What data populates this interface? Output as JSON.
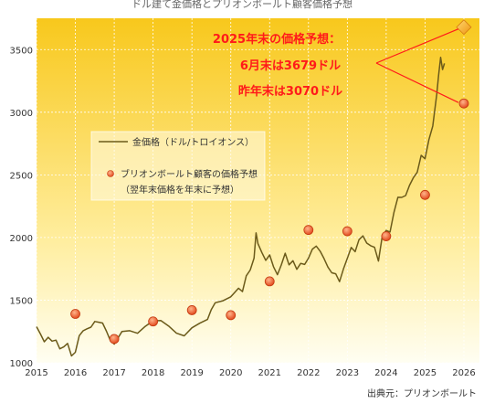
{
  "chart_data": {
    "type": "line",
    "title": "ドル建て金価格とプリオンボールト顧客価格予想",
    "source": "出典元：プリオンボールト",
    "xlim": [
      2015,
      2026.4
    ],
    "ylim": [
      1000,
      3750
    ],
    "x_ticks": [
      "2015",
      "2016",
      "2017",
      "2018",
      "2019",
      "2020",
      "2021",
      "2022",
      "2023",
      "2024",
      "2025",
      "2026"
    ],
    "y_ticks": [
      "1000",
      "1500",
      "2000",
      "2500",
      "3000",
      "3500"
    ],
    "series": [
      {
        "name": "金価格（ドル/トロイオンス）",
        "color": "#6b5a1a",
        "x": [
          2015.0,
          2015.1,
          2015.2,
          2015.3,
          2015.4,
          2015.5,
          2015.6,
          2015.7,
          2015.8,
          2015.9,
          2016.0,
          2016.1,
          2016.2,
          2016.3,
          2016.4,
          2016.5,
          2016.6,
          2016.7,
          2016.8,
          2016.9,
          2017.0,
          2017.2,
          2017.4,
          2017.6,
          2017.8,
          2018.0,
          2018.2,
          2018.4,
          2018.6,
          2018.8,
          2019.0,
          2019.2,
          2019.4,
          2019.5,
          2019.6,
          2019.8,
          2020.0,
          2020.2,
          2020.3,
          2020.4,
          2020.5,
          2020.6,
          2020.65,
          2020.7,
          2020.8,
          2020.9,
          2021.0,
          2021.1,
          2021.2,
          2021.3,
          2021.4,
          2021.5,
          2021.6,
          2021.7,
          2021.8,
          2021.9,
          2022.0,
          2022.1,
          2022.2,
          2022.3,
          2022.4,
          2022.5,
          2022.6,
          2022.7,
          2022.8,
          2022.9,
          2023.0,
          2023.1,
          2023.2,
          2023.3,
          2023.4,
          2023.5,
          2023.6,
          2023.7,
          2023.8,
          2023.9,
          2024.0,
          2024.1,
          2024.2,
          2024.3,
          2024.4,
          2024.5,
          2024.6,
          2024.7,
          2024.8,
          2024.9,
          2025.0,
          2025.1,
          2025.2,
          2025.3,
          2025.35,
          2025.4,
          2025.45,
          2025.5
        ],
        "y": [
          1280,
          1220,
          1180,
          1200,
          1190,
          1170,
          1110,
          1120,
          1150,
          1070,
          1080,
          1230,
          1240,
          1270,
          1280,
          1330,
          1340,
          1310,
          1260,
          1160,
          1150,
          1250,
          1260,
          1250,
          1280,
          1340,
          1320,
          1300,
          1240,
          1220,
          1290,
          1300,
          1350,
          1410,
          1490,
          1500,
          1530,
          1600,
          1550,
          1700,
          1730,
          1850,
          2040,
          1950,
          1880,
          1800,
          1870,
          1760,
          1720,
          1780,
          1870,
          1780,
          1800,
          1760,
          1790,
          1800,
          1830,
          1900,
          1930,
          1880,
          1850,
          1760,
          1730,
          1700,
          1640,
          1750,
          1830,
          1940,
          1880,
          1990,
          2000,
          1950,
          1940,
          1920,
          1830,
          2000,
          2060,
          2030,
          2200,
          2330,
          2320,
          2350,
          2400,
          2480,
          2510,
          2660,
          2640,
          2780,
          2900,
          3120,
          3300,
          3430,
          3350,
          3400
        ]
      },
      {
        "name": "ブリオンボールト顧客の価格予想",
        "sublabel": "（翌年末価格を年末に予想）",
        "color": "#ee5a2a",
        "x": [
          2016.0,
          2017.0,
          2018.0,
          2019.0,
          2020.0,
          2021.0,
          2022.0,
          2023.0,
          2024.0,
          2025.0,
          2026.0
        ],
        "y": [
          1390,
          1190,
          1330,
          1420,
          1380,
          1650,
          2060,
          2050,
          2010,
          2340,
          3070
        ]
      }
    ],
    "highlight": {
      "x": 2026.0,
      "y": 3679,
      "color": "#f0a020"
    },
    "annotation_lines": [
      "2025年末の価格予想：",
      "6月末は3679ドル",
      "昨年末は3070ドル"
    ],
    "annotation_color": "#ff1a1a",
    "grid": true,
    "legend_position": "left-middle"
  }
}
